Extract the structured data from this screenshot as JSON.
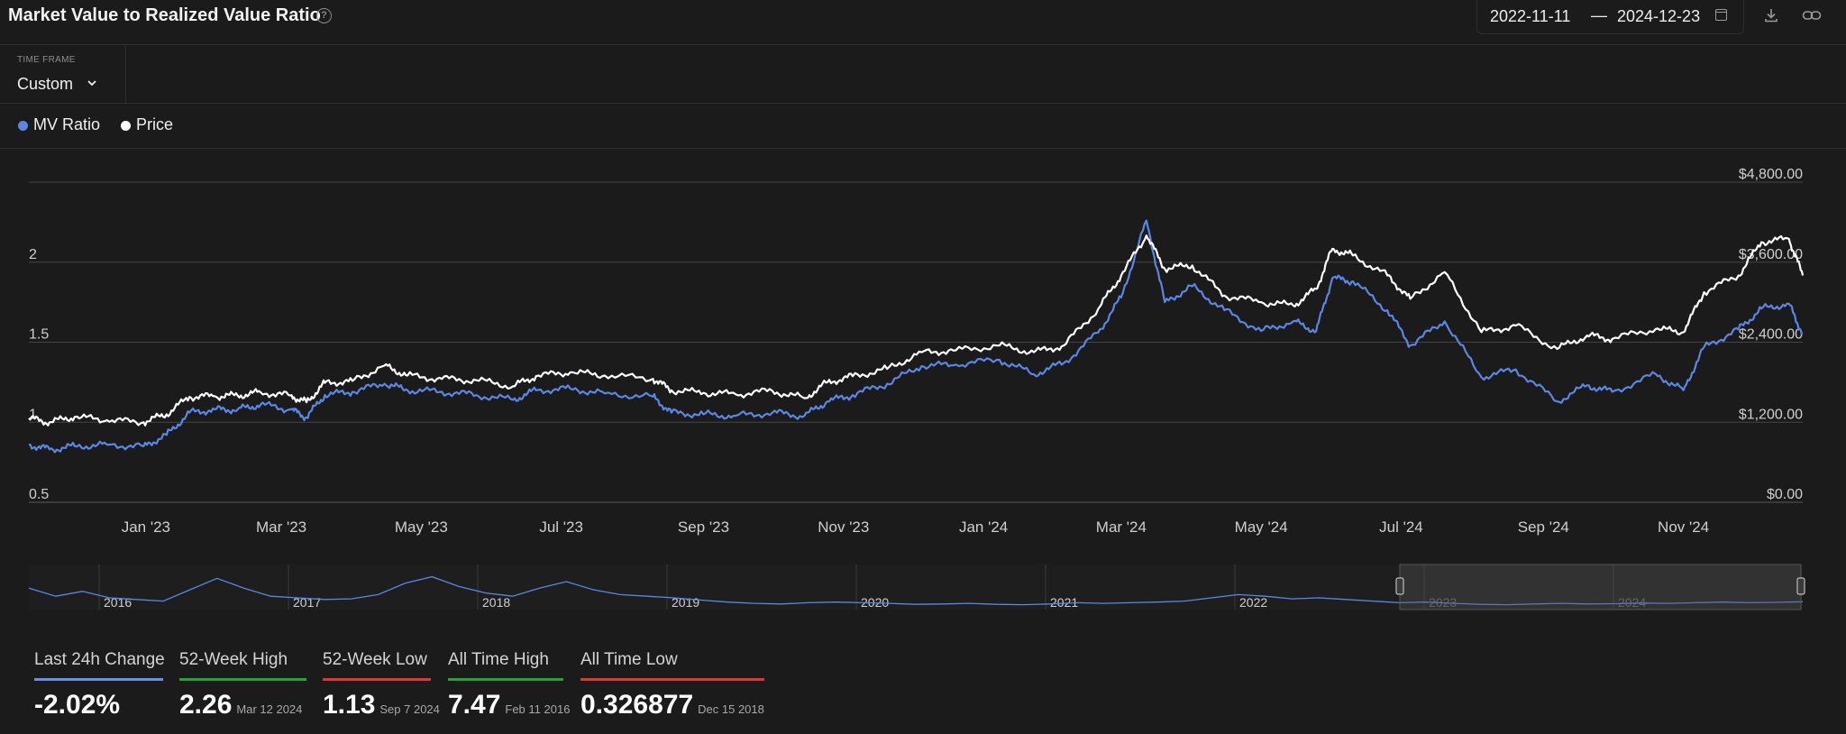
{
  "header": {
    "title": "Market Value to Realized Value Ratio",
    "help_icon": "question-circle-icon",
    "date_start": "2022-11-11",
    "date_separator": "—",
    "date_end": "2024-12-23"
  },
  "timeframe": {
    "label": "TIME FRAME",
    "value": "Custom"
  },
  "legend": [
    {
      "name": "MV Ratio",
      "color": "#5b86e5"
    },
    {
      "name": "Price",
      "color": "#ffffff"
    }
  ],
  "chart_data": {
    "type": "line",
    "x_tick_labels": [
      "Jan '23",
      "Mar '23",
      "May '23",
      "Jul '23",
      "Sep '23",
      "Nov '23",
      "Jan '24",
      "Mar '24",
      "May '24",
      "Jul '24",
      "Sep '24",
      "Nov '24"
    ],
    "y_left_ticks": [
      "0.5",
      "1",
      "1.5",
      "2"
    ],
    "y_right_ticks": [
      "$0.00",
      "$1,200.00",
      "$2,400.00",
      "$3,600.00",
      "$4,800.00"
    ],
    "y_left_range": [
      0.5,
      2.5
    ],
    "y_right_range": [
      0,
      4800
    ],
    "grid": true,
    "series": [
      {
        "name": "MV Ratio",
        "axis": "left",
        "color": "#5b86e5",
        "points": [
          [
            "2022-11-11",
            0.86
          ],
          [
            "2022-11-20",
            0.83
          ],
          [
            "2022-12-01",
            0.85
          ],
          [
            "2022-12-15",
            0.86
          ],
          [
            "2022-12-31",
            0.85
          ],
          [
            "2023-01-10",
            0.92
          ],
          [
            "2023-01-20",
            1.06
          ],
          [
            "2023-01-31",
            1.08
          ],
          [
            "2023-02-10",
            1.08
          ],
          [
            "2023-02-20",
            1.11
          ],
          [
            "2023-03-05",
            1.08
          ],
          [
            "2023-03-12",
            1.03
          ],
          [
            "2023-03-20",
            1.17
          ],
          [
            "2023-04-01",
            1.19
          ],
          [
            "2023-04-15",
            1.24
          ],
          [
            "2023-04-25",
            1.2
          ],
          [
            "2023-05-10",
            1.19
          ],
          [
            "2023-05-25",
            1.17
          ],
          [
            "2023-06-10",
            1.14
          ],
          [
            "2023-06-20",
            1.2
          ],
          [
            "2023-07-05",
            1.21
          ],
          [
            "2023-07-20",
            1.18
          ],
          [
            "2023-08-10",
            1.16
          ],
          [
            "2023-08-18",
            1.06
          ],
          [
            "2023-09-01",
            1.05
          ],
          [
            "2023-09-15",
            1.04
          ],
          [
            "2023-10-01",
            1.06
          ],
          [
            "2023-10-15",
            1.04
          ],
          [
            "2023-10-25",
            1.13
          ],
          [
            "2023-11-05",
            1.17
          ],
          [
            "2023-11-20",
            1.24
          ],
          [
            "2023-12-05",
            1.35
          ],
          [
            "2023-12-20",
            1.36
          ],
          [
            "2024-01-08",
            1.39
          ],
          [
            "2024-01-23",
            1.3
          ],
          [
            "2024-02-05",
            1.37
          ],
          [
            "2024-02-20",
            1.56
          ],
          [
            "2024-03-01",
            1.78
          ],
          [
            "2024-03-12",
            2.26
          ],
          [
            "2024-03-20",
            1.75
          ],
          [
            "2024-04-01",
            1.85
          ],
          [
            "2024-04-15",
            1.7
          ],
          [
            "2024-05-01",
            1.57
          ],
          [
            "2024-05-15",
            1.63
          ],
          [
            "2024-05-25",
            1.57
          ],
          [
            "2024-06-01",
            1.9
          ],
          [
            "2024-06-10",
            1.88
          ],
          [
            "2024-06-25",
            1.7
          ],
          [
            "2024-07-05",
            1.48
          ],
          [
            "2024-07-20",
            1.63
          ],
          [
            "2024-08-05",
            1.28
          ],
          [
            "2024-08-20",
            1.33
          ],
          [
            "2024-09-07",
            1.13
          ],
          [
            "2024-09-20",
            1.23
          ],
          [
            "2024-10-01",
            1.19
          ],
          [
            "2024-10-20",
            1.3
          ],
          [
            "2024-11-01",
            1.2
          ],
          [
            "2024-11-10",
            1.47
          ],
          [
            "2024-11-25",
            1.58
          ],
          [
            "2024-12-05",
            1.71
          ],
          [
            "2024-12-17",
            1.74
          ],
          [
            "2024-12-23",
            1.55
          ]
        ]
      },
      {
        "name": "Price",
        "axis": "right",
        "color": "#ffffff",
        "points": [
          [
            "2022-11-11",
            1260
          ],
          [
            "2022-11-20",
            1200
          ],
          [
            "2022-12-01",
            1280
          ],
          [
            "2022-12-15",
            1230
          ],
          [
            "2022-12-31",
            1200
          ],
          [
            "2023-01-10",
            1320
          ],
          [
            "2023-01-20",
            1580
          ],
          [
            "2023-01-31",
            1590
          ],
          [
            "2023-02-10",
            1600
          ],
          [
            "2023-02-20",
            1650
          ],
          [
            "2023-03-05",
            1600
          ],
          [
            "2023-03-12",
            1500
          ],
          [
            "2023-03-20",
            1790
          ],
          [
            "2023-04-01",
            1820
          ],
          [
            "2023-04-15",
            2050
          ],
          [
            "2023-04-25",
            1900
          ],
          [
            "2023-05-10",
            1850
          ],
          [
            "2023-05-25",
            1830
          ],
          [
            "2023-06-10",
            1740
          ],
          [
            "2023-06-20",
            1890
          ],
          [
            "2023-07-05",
            1950
          ],
          [
            "2023-07-20",
            1900
          ],
          [
            "2023-08-10",
            1850
          ],
          [
            "2023-08-18",
            1680
          ],
          [
            "2023-09-01",
            1640
          ],
          [
            "2023-09-15",
            1620
          ],
          [
            "2023-10-01",
            1670
          ],
          [
            "2023-10-15",
            1560
          ],
          [
            "2023-10-25",
            1800
          ],
          [
            "2023-11-05",
            1890
          ],
          [
            "2023-11-20",
            2000
          ],
          [
            "2023-12-05",
            2250
          ],
          [
            "2023-12-20",
            2280
          ],
          [
            "2024-01-08",
            2350
          ],
          [
            "2024-01-23",
            2250
          ],
          [
            "2024-02-05",
            2350
          ],
          [
            "2024-02-20",
            2900
          ],
          [
            "2024-03-01",
            3400
          ],
          [
            "2024-03-12",
            4000
          ],
          [
            "2024-03-20",
            3500
          ],
          [
            "2024-04-01",
            3550
          ],
          [
            "2024-04-15",
            3100
          ],
          [
            "2024-05-01",
            3000
          ],
          [
            "2024-05-15",
            2950
          ],
          [
            "2024-05-25",
            3200
          ],
          [
            "2024-06-01",
            3800
          ],
          [
            "2024-06-10",
            3700
          ],
          [
            "2024-06-25",
            3400
          ],
          [
            "2024-07-05",
            3050
          ],
          [
            "2024-07-20",
            3450
          ],
          [
            "2024-08-05",
            2550
          ],
          [
            "2024-08-20",
            2650
          ],
          [
            "2024-09-07",
            2300
          ],
          [
            "2024-09-20",
            2500
          ],
          [
            "2024-10-01",
            2450
          ],
          [
            "2024-10-20",
            2600
          ],
          [
            "2024-11-01",
            2550
          ],
          [
            "2024-11-10",
            3150
          ],
          [
            "2024-11-25",
            3400
          ],
          [
            "2024-12-05",
            3900
          ],
          [
            "2024-12-17",
            3950
          ],
          [
            "2024-12-23",
            3400
          ]
        ]
      }
    ],
    "navigator": {
      "year_labels": [
        "2016",
        "2017",
        "2018",
        "2019",
        "2020",
        "2021",
        "2022",
        "2023",
        "2024"
      ]
    }
  },
  "stats": [
    {
      "label": "Last 24h Change",
      "value": "-2.02%",
      "date": "",
      "color": "#6e8fe0"
    },
    {
      "label": "52-Week High",
      "value": "2.26",
      "date": "Mar 12 2024",
      "color": "#2e9e3e"
    },
    {
      "label": "52-Week Low",
      "value": "1.13",
      "date": "Sep 7 2024",
      "color": "#d83a3a"
    },
    {
      "label": "All Time High",
      "value": "7.47",
      "date": "Feb 11 2016",
      "color": "#2e9e3e"
    },
    {
      "label": "All Time Low",
      "value": "0.326877",
      "date": "Dec 15 2018",
      "color": "#d83a3a"
    }
  ]
}
